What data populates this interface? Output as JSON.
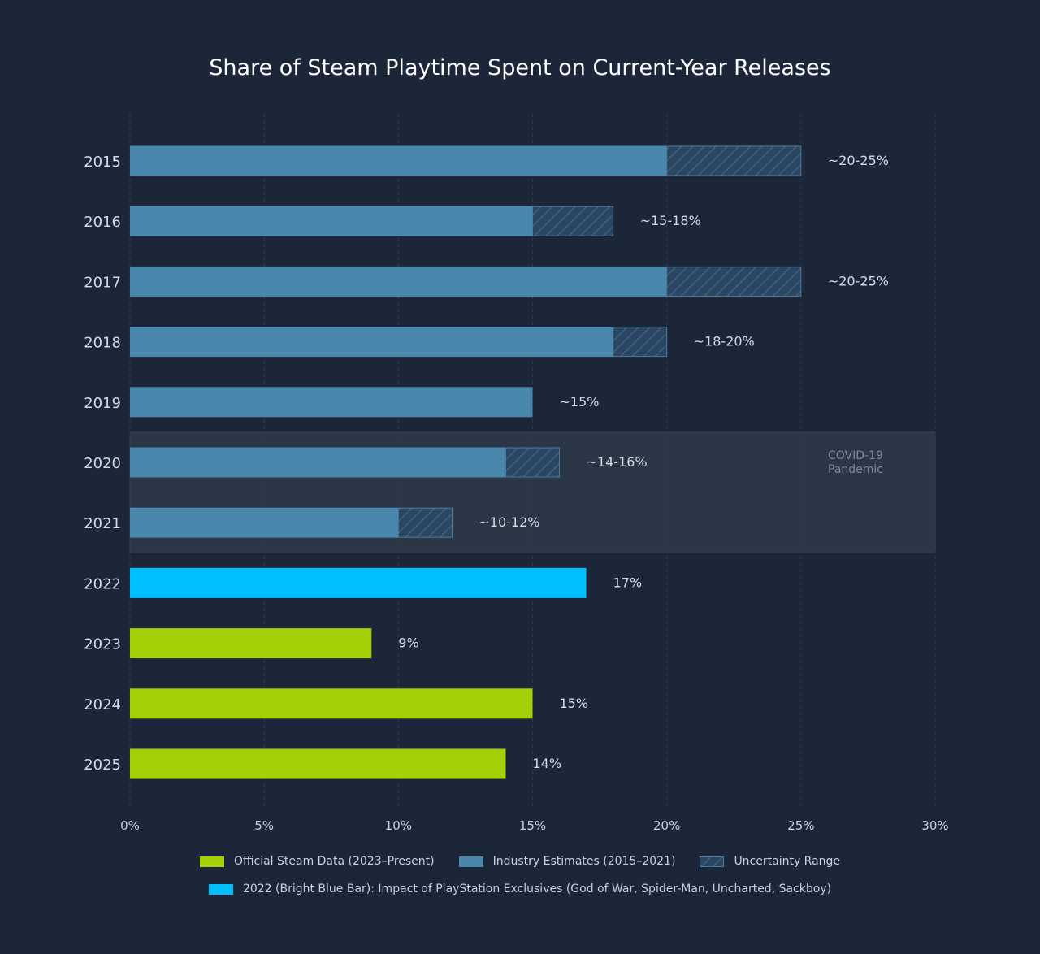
{
  "chart_data": {
    "type": "bar",
    "orientation": "horizontal",
    "title": "Share of Steam Playtime Spent on Current-Year Releases",
    "xlabel": "",
    "ylabel": "",
    "xlim": [
      0,
      30
    ],
    "xticks": [
      "0%",
      "5%",
      "10%",
      "15%",
      "20%",
      "25%",
      "30%"
    ],
    "xtick_values": [
      0,
      5,
      10,
      15,
      20,
      25,
      30
    ],
    "grid": "vertical dashed",
    "categories": [
      "2015",
      "2016",
      "2017",
      "2018",
      "2019",
      "2020",
      "2021",
      "2022",
      "2023",
      "2024",
      "2025"
    ],
    "bars": [
      {
        "year": "2015",
        "value": 20,
        "upper": 25,
        "label": "~20-25%",
        "series": "estimate"
      },
      {
        "year": "2016",
        "value": 15,
        "upper": 18,
        "label": "~15-18%",
        "series": "estimate"
      },
      {
        "year": "2017",
        "value": 20,
        "upper": 25,
        "label": "~20-25%",
        "series": "estimate"
      },
      {
        "year": "2018",
        "value": 18,
        "upper": 20,
        "label": "~18-20%",
        "series": "estimate"
      },
      {
        "year": "2019",
        "value": 15,
        "upper": 15,
        "label": "~15%",
        "series": "estimate"
      },
      {
        "year": "2020",
        "value": 14,
        "upper": 16,
        "label": "~14-16%",
        "series": "estimate"
      },
      {
        "year": "2021",
        "value": 10,
        "upper": 12,
        "label": "~10-12%",
        "series": "estimate"
      },
      {
        "year": "2022",
        "value": 17,
        "upper": 17,
        "label": "17%",
        "series": "highlight"
      },
      {
        "year": "2023",
        "value": 9,
        "upper": 9,
        "label": "9%",
        "series": "official"
      },
      {
        "year": "2024",
        "value": 15,
        "upper": 15,
        "label": "15%",
        "series": "official"
      },
      {
        "year": "2025",
        "value": 14,
        "upper": 14,
        "label": "14%",
        "series": "official"
      }
    ],
    "annotation": {
      "text_line1": "COVID-19",
      "text_line2": "Pandemic",
      "span": [
        "2020",
        "2021"
      ]
    },
    "legend": [
      {
        "name": "Official Steam Data (2023–Present)",
        "color": "#a4d007",
        "kind": "solid"
      },
      {
        "name": "Industry Estimates (2015–2021)",
        "color": "#4a87ad",
        "kind": "solid"
      },
      {
        "name": "Uncertainty Range",
        "color": "#4a87ad",
        "kind": "hatch"
      },
      {
        "name": "2022 (Bright Blue Bar): Impact of PlayStation Exclusives (God of War, Spider-Man, Uncharted, Sackboy)",
        "color": "#00bfff",
        "kind": "solid"
      }
    ],
    "legend_position": "bottom",
    "colors": {
      "official": "#a4d007",
      "estimate": "#4a87ad",
      "highlight": "#00bfff",
      "background": "#1b2638"
    }
  }
}
